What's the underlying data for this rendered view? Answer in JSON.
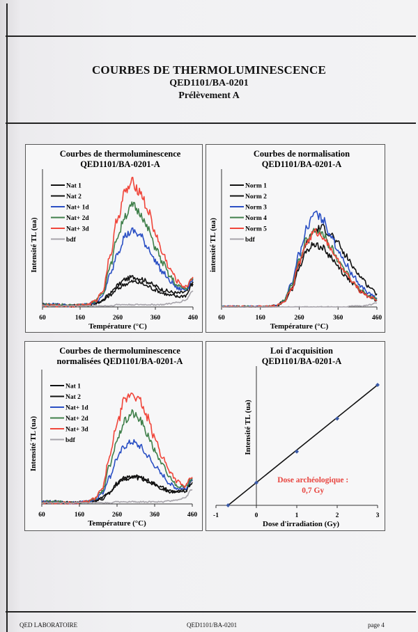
{
  "header": {
    "title": "COURBES DE THERMOLUMINESCENCE",
    "reference": "QED1101/BA-0201",
    "sample": "Prélèvement A"
  },
  "footer": {
    "lab": "QED LABORATOIRE",
    "reference": "QED1101/BA-0201",
    "page": "page 4"
  },
  "colors": {
    "nat": "#111111",
    "plus1": "#2a4fc4",
    "plus2": "#3f7f4a",
    "plus3": "#f0453a",
    "bdf": "#a6a3aa",
    "dose_label": "#e8443e",
    "fit_point": "#3a5aa8"
  },
  "chart_data": [
    {
      "id": "tl",
      "type": "line",
      "title": [
        "Courbes de thermoluminescence",
        "QED1101/BA-0201-A"
      ],
      "xlabel": "Température (°C)",
      "ylabel": "Intensité TL (ua)",
      "xlim": [
        60,
        460
      ],
      "xticks": [
        "60",
        "160",
        "260",
        "360",
        "460"
      ],
      "legend_position": "top-left",
      "x": [
        60,
        100,
        140,
        180,
        200,
        220,
        240,
        260,
        280,
        300,
        320,
        340,
        360,
        380,
        400,
        420,
        440,
        460
      ],
      "series": [
        {
          "name": "Nat 1",
          "color_key": "nat",
          "values": [
            2,
            2,
            1,
            2,
            3,
            6,
            12,
            19,
            24,
            26,
            25,
            22,
            18,
            15,
            13,
            12,
            13,
            22
          ]
        },
        {
          "name": "Nat 2",
          "color_key": "nat",
          "values": [
            2,
            2,
            1,
            2,
            3,
            5,
            10,
            16,
            20,
            22,
            21,
            18,
            15,
            12,
            10,
            9,
            10,
            20
          ]
        },
        {
          "name": "Nat+ 1d",
          "color_key": "plus1",
          "values": [
            2,
            2,
            1,
            2,
            4,
            10,
            28,
            48,
            62,
            66,
            62,
            52,
            40,
            30,
            22,
            16,
            15,
            24
          ]
        },
        {
          "name": "Nat+ 2d",
          "color_key": "plus2",
          "values": [
            2,
            2,
            1,
            2,
            5,
            12,
            36,
            62,
            80,
            88,
            82,
            68,
            52,
            38,
            26,
            18,
            16,
            25
          ]
        },
        {
          "name": "Nat+ 3d",
          "color_key": "plus3",
          "values": [
            1,
            1,
            1,
            2,
            5,
            14,
            45,
            78,
            100,
            108,
            100,
            84,
            64,
            46,
            32,
            22,
            17,
            26
          ]
        },
        {
          "name": "bdf",
          "color_key": "bdf",
          "values": [
            1,
            1,
            1,
            1,
            1,
            1,
            1,
            2,
            2,
            2,
            2,
            2,
            2,
            2,
            3,
            4,
            6,
            14
          ]
        }
      ],
      "ylim": [
        0,
        115
      ]
    },
    {
      "id": "norm",
      "type": "line",
      "title": [
        "Courbes de normalisation",
        "QED1101/BA-0201-A"
      ],
      "xlabel": "Température (°C)",
      "ylabel": "intensité TL (ua)",
      "xlim": [
        60,
        460
      ],
      "xticks": [
        "60",
        "160",
        "260",
        "360",
        "460"
      ],
      "legend_position": "top-left",
      "x": [
        60,
        100,
        140,
        180,
        200,
        220,
        240,
        260,
        280,
        300,
        320,
        340,
        360,
        380,
        400,
        420,
        440,
        460
      ],
      "series": [
        {
          "name": "Norm 1",
          "color_key": "nat",
          "values": [
            0,
            0,
            0,
            0,
            1,
            5,
            18,
            42,
            64,
            76,
            78,
            72,
            62,
            50,
            39,
            29,
            20,
            13
          ]
        },
        {
          "name": "Norm 2",
          "color_key": "nat",
          "values": [
            0,
            0,
            0,
            0,
            1,
            5,
            17,
            38,
            56,
            62,
            58,
            50,
            40,
            30,
            22,
            15,
            10,
            7
          ]
        },
        {
          "name": "Norm 3",
          "color_key": "plus1",
          "values": [
            0,
            0,
            0,
            0,
            1,
            6,
            22,
            52,
            78,
            92,
            86,
            72,
            56,
            42,
            30,
            20,
            13,
            9
          ]
        },
        {
          "name": "Norm 4",
          "color_key": "plus2",
          "values": [
            0,
            0,
            0,
            0,
            1,
            6,
            20,
            46,
            68,
            76,
            72,
            60,
            46,
            34,
            24,
            16,
            11,
            8
          ]
        },
        {
          "name": "Norm 5",
          "color_key": "plus3",
          "values": [
            0,
            0,
            0,
            0,
            1,
            5,
            18,
            43,
            64,
            74,
            70,
            58,
            45,
            33,
            23,
            15,
            10,
            7
          ]
        },
        {
          "name": "bdf",
          "color_key": "bdf",
          "values": [
            0,
            0,
            0,
            0,
            0,
            0,
            0,
            0,
            0,
            0,
            0,
            0,
            0,
            0,
            1,
            1,
            2,
            4
          ]
        }
      ],
      "ylim": [
        0,
        130
      ]
    },
    {
      "id": "tlnorm",
      "type": "line",
      "title": [
        "Courbes de thermoluminescence",
        "normalisées  QED1101/BA-0201-A"
      ],
      "xlabel": "Température (°C)",
      "ylabel": "Intensité TL (ua)",
      "xlim": [
        60,
        460
      ],
      "xticks": [
        "60",
        "160",
        "260",
        "360",
        "460"
      ],
      "legend_position": "top-left",
      "x": [
        60,
        100,
        140,
        180,
        200,
        220,
        240,
        260,
        280,
        300,
        320,
        340,
        360,
        380,
        400,
        420,
        440,
        460
      ],
      "series": [
        {
          "name": "Nat 1",
          "color_key": "nat",
          "values": [
            2,
            2,
            1,
            2,
            3,
            6,
            12,
            20,
            25,
            27,
            26,
            23,
            20,
            16,
            13,
            12,
            13,
            22
          ]
        },
        {
          "name": "Nat 2",
          "color_key": "nat",
          "values": [
            2,
            2,
            1,
            2,
            3,
            5,
            11,
            19,
            24,
            26,
            25,
            22,
            19,
            15,
            12,
            11,
            12,
            21
          ]
        },
        {
          "name": "Nat+ 1d",
          "color_key": "plus1",
          "values": [
            2,
            2,
            1,
            2,
            4,
            10,
            26,
            44,
            56,
            60,
            56,
            47,
            37,
            28,
            20,
            15,
            15,
            24
          ]
        },
        {
          "name": "Nat+ 2d",
          "color_key": "plus2",
          "values": [
            2,
            2,
            1,
            2,
            5,
            12,
            36,
            62,
            80,
            88,
            82,
            68,
            52,
            38,
            26,
            18,
            16,
            25
          ]
        },
        {
          "name": "Nat+ 3d",
          "color_key": "plus3",
          "values": [
            1,
            1,
            1,
            2,
            5,
            14,
            45,
            78,
            100,
            108,
            100,
            84,
            64,
            46,
            32,
            22,
            17,
            26
          ]
        },
        {
          "name": "bdf",
          "color_key": "bdf",
          "values": [
            1,
            1,
            1,
            1,
            1,
            1,
            1,
            2,
            2,
            2,
            2,
            2,
            2,
            2,
            3,
            4,
            6,
            14
          ]
        }
      ],
      "ylim": [
        0,
        125
      ]
    },
    {
      "id": "acq",
      "type": "scatter",
      "title": [
        "Loi d'acquisition",
        "QED1101/BA-0201-A"
      ],
      "xlabel": "Dose d'irradiation (Gy)",
      "ylabel": "Intensité TL (ua)",
      "xlim": [
        -1,
        3
      ],
      "xticks": [
        "-1",
        "0",
        "1",
        "2",
        "3"
      ],
      "x": [
        -0.7,
        0,
        1,
        2,
        3
      ],
      "y": [
        0,
        35,
        83,
        134,
        186
      ],
      "fit": {
        "x": [
          -0.7,
          3
        ],
        "y": [
          0,
          186
        ]
      },
      "ylim": [
        0,
        200
      ],
      "annotation": [
        "Dose archéologique :",
        "0,7 Gy"
      ]
    }
  ]
}
